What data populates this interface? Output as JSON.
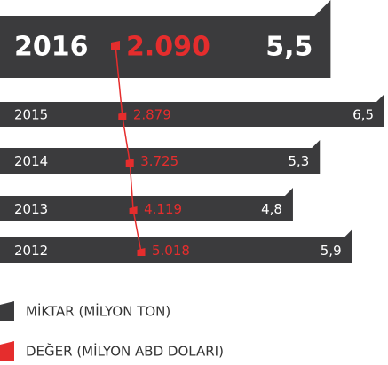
{
  "chart_data": {
    "type": "bar",
    "categories": [
      "2016",
      "2015",
      "2014",
      "2013",
      "2012"
    ],
    "series": [
      {
        "name": "MİKTAR (MİLYON TON)",
        "color": "#3b3b3d",
        "values": [
          5.5,
          6.5,
          5.3,
          4.8,
          5.9
        ],
        "value_labels": [
          "5,5",
          "6,5",
          "5,3",
          "4,8",
          "5,9"
        ]
      },
      {
        "name": "DEĞER (MİLYON ABD DOLARI)",
        "color": "#e52d2d",
        "values": [
          2090,
          2879,
          3725,
          4119,
          5018
        ],
        "value_labels": [
          "2.090",
          "2.879",
          "3.725",
          "4.119",
          "5.018"
        ]
      }
    ]
  }
}
